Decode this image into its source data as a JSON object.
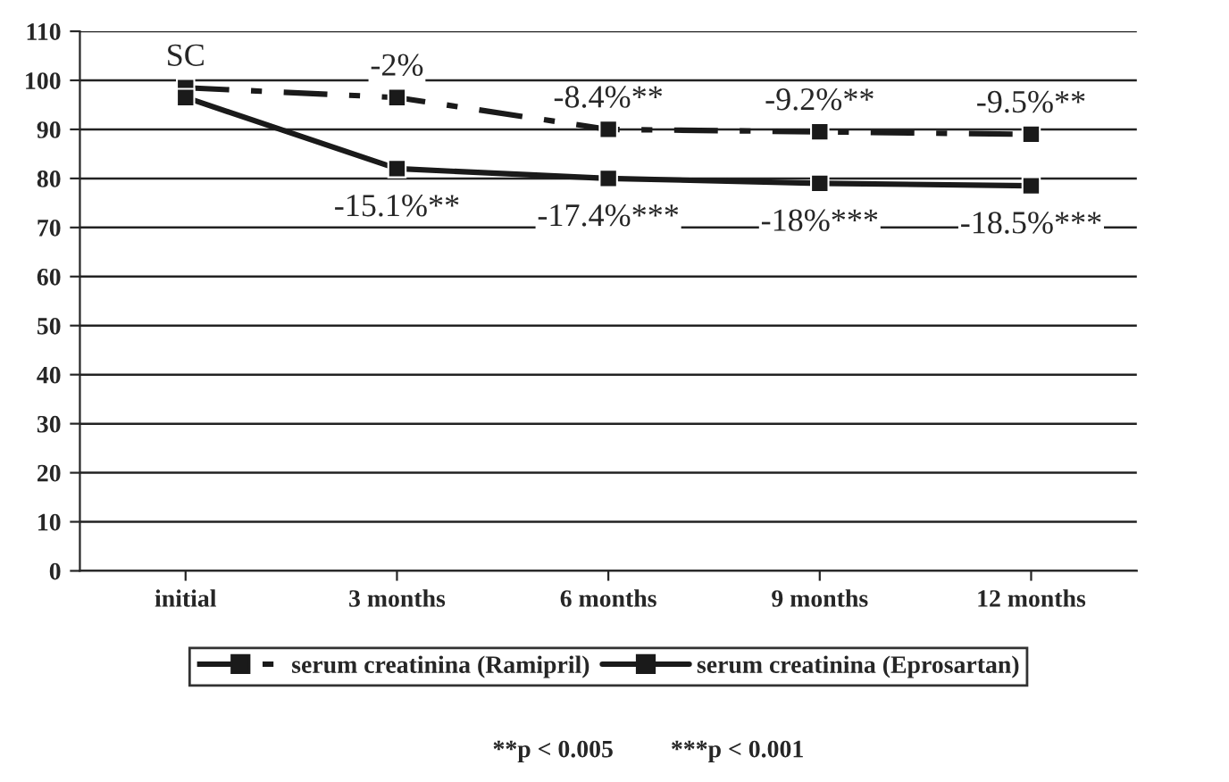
{
  "chart_data": {
    "type": "line",
    "categories": [
      "initial",
      "3 months",
      "6 months",
      "9 months",
      "12 months"
    ],
    "series": [
      {
        "name": "serum creatinina (Ramipril)",
        "color": "#1a1a1a",
        "values": [
          98.5,
          96.5,
          90,
          89.5,
          89
        ],
        "line_style": "dashed"
      },
      {
        "name": "serum creatinina (Eprosartan)",
        "color": "#1a1a1a",
        "values": [
          96.5,
          82,
          80,
          79,
          78.5
        ],
        "line_style": "solid"
      }
    ],
    "ylim": [
      0,
      110
    ],
    "yticks": [
      0,
      10,
      20,
      30,
      40,
      50,
      60,
      70,
      80,
      90,
      100,
      110
    ],
    "grid": "y",
    "legend": "bottom",
    "marker": "square",
    "annotations": [
      {
        "text": "SC",
        "x": "initial",
        "y": 98.5
      },
      {
        "text": "-2%",
        "x": "3 months",
        "y": 96.5
      },
      {
        "text": "-8.4%**",
        "x": "6 months",
        "y": 90
      },
      {
        "text": "-9.2%**",
        "x": "9 months",
        "y": 89.5
      },
      {
        "text": "-9.5%**",
        "x": "12 months",
        "y": 89
      },
      {
        "text": "-15.1%**",
        "x": "3 months",
        "y": 82
      },
      {
        "text": "-17.4%***",
        "x": "6 months",
        "y": 80
      },
      {
        "text": "-18%***",
        "x": "9 months",
        "y": 79
      },
      {
        "text": "-18.5%***",
        "x": "12 months",
        "y": 78.5
      },
      "**p < 0.005",
      "***p < 0.001"
    ]
  }
}
